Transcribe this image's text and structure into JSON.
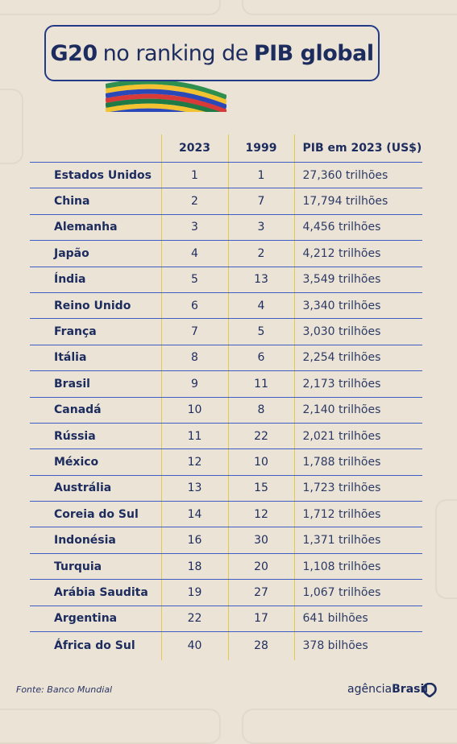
{
  "title": {
    "part1": "G20",
    "part2": "no ranking de",
    "part3": "PIB global"
  },
  "table": {
    "headers": [
      "",
      "2023",
      "1999",
      "PIB em 2023 (US$)"
    ],
    "rows": [
      {
        "country": "Estados Unidos",
        "r2023": "1",
        "r1999": "1",
        "pib": "27,360 trilhões"
      },
      {
        "country": "China",
        "r2023": "2",
        "r1999": "7",
        "pib": "17,794 trilhões"
      },
      {
        "country": "Alemanha",
        "r2023": "3",
        "r1999": "3",
        "pib": "4,456 trilhões"
      },
      {
        "country": "Japão",
        "r2023": "4",
        "r1999": "2",
        "pib": "4,212 trilhões"
      },
      {
        "country": "Índia",
        "r2023": "5",
        "r1999": "13",
        "pib": "3,549 trilhões"
      },
      {
        "country": "Reino Unido",
        "r2023": "6",
        "r1999": "4",
        "pib": "3,340 trilhões"
      },
      {
        "country": "França",
        "r2023": "7",
        "r1999": "5",
        "pib": "3,030 trilhões"
      },
      {
        "country": "Itália",
        "r2023": "8",
        "r1999": "6",
        "pib": "2,254 trilhões"
      },
      {
        "country": "Brasil",
        "r2023": "9",
        "r1999": "11",
        "pib": "2,173 trilhões"
      },
      {
        "country": "Canadá",
        "r2023": "10",
        "r1999": "8",
        "pib": "2,140 trilhões"
      },
      {
        "country": "Rússia",
        "r2023": "11",
        "r1999": "22",
        "pib": "2,021 trilhões"
      },
      {
        "country": "México",
        "r2023": "12",
        "r1999": "10",
        "pib": "1,788 trilhões"
      },
      {
        "country": "Austrália",
        "r2023": "13",
        "r1999": "15",
        "pib": "1,723 trilhões"
      },
      {
        "country": "Coreia do Sul",
        "r2023": "14",
        "r1999": "12",
        "pib": "1,712 trilhões"
      },
      {
        "country": "Indonésia",
        "r2023": "16",
        "r1999": "30",
        "pib": "1,371 trilhões"
      },
      {
        "country": "Turquia",
        "r2023": "18",
        "r1999": "20",
        "pib": "1,108  trilhões"
      },
      {
        "country": "Arábia Saudita",
        "r2023": "19",
        "r1999": "27",
        "pib": "1,067 trilhões"
      },
      {
        "country": "Argentina",
        "r2023": "22",
        "r1999": "17",
        "pib": "641 bilhões"
      },
      {
        "country": "África do Sul",
        "r2023": "40",
        "r1999": "28",
        "pib": "378 bilhões"
      }
    ]
  },
  "footer": {
    "source": "Fonte:  Banco Mundial",
    "brand_light": "agência",
    "brand_bold": "Brasil"
  },
  "colors": {
    "navy": "#1d2c5e",
    "background": "#ebe3d6",
    "rule_blue": "#3f5cc4",
    "rule_yellow": "#e6c94a"
  },
  "icons": {
    "brand": "pin-icon",
    "stripes": "flag-stripes-icon"
  }
}
